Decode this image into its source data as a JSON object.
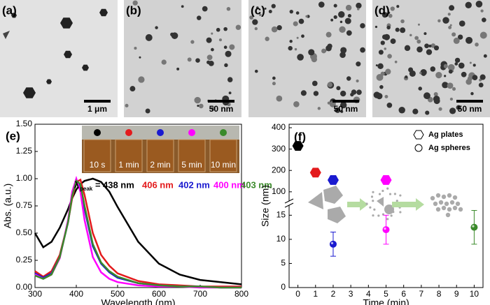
{
  "tem_images": [
    {
      "label": "(a)",
      "scale_bar": "1 μm"
    },
    {
      "label": "(b)",
      "scale_bar": "50 nm"
    },
    {
      "label": "(c)",
      "scale_bar": "50 nm"
    },
    {
      "label": "(d)",
      "scale_bar": "50 nm"
    }
  ],
  "chart_data": [
    {
      "type": "line",
      "panel_label": "(e)",
      "x_label": "Wavelength (nm)",
      "y_label": "Abs. (a.u.)",
      "peak_symbol": "λ",
      "peak_subscript": "peak",
      "peak_equals": "=",
      "xlim": [
        300,
        800
      ],
      "xticks": [
        300,
        400,
        500,
        600,
        700,
        800
      ],
      "ylim": [
        0,
        1.5
      ],
      "yticks": [
        {
          "value": 0,
          "label": "0.00"
        },
        {
          "value": 0.25,
          "label": "0.25"
        },
        {
          "value": 0.5,
          "label": "0.50"
        },
        {
          "value": 0.75,
          "label": "0.75"
        },
        {
          "value": 1,
          "label": "1.00"
        },
        {
          "value": 1.25,
          "label": "1.25"
        },
        {
          "value": 1.5,
          "label": "1.50"
        }
      ],
      "x": [
        300,
        320,
        340,
        360,
        380,
        390,
        400,
        410,
        420,
        440,
        460,
        480,
        500,
        550,
        600,
        650,
        700,
        750,
        800
      ],
      "series": [
        {
          "name": "10 s",
          "color": "#000000",
          "peak_label": "438 nm",
          "values": [
            0.5,
            0.37,
            0.42,
            0.55,
            0.72,
            0.82,
            0.9,
            0.95,
            0.98,
            1.0,
            0.97,
            0.88,
            0.74,
            0.42,
            0.22,
            0.12,
            0.07,
            0.05,
            0.03
          ]
        },
        {
          "name": "1 min",
          "color": "#e31a1c",
          "peak_label": "406 nm",
          "values": [
            0.15,
            0.1,
            0.15,
            0.3,
            0.6,
            0.82,
            0.97,
            0.99,
            0.85,
            0.5,
            0.3,
            0.2,
            0.13,
            0.06,
            0.03,
            0.02,
            0.01,
            0.01,
            0.01
          ]
        },
        {
          "name": "2 min",
          "color": "#1a1ad0",
          "peak_label": "402 nm",
          "values": [
            0.13,
            0.09,
            0.13,
            0.28,
            0.6,
            0.85,
            0.99,
            0.93,
            0.72,
            0.38,
            0.22,
            0.14,
            0.09,
            0.04,
            0.02,
            0.01,
            0.01,
            0,
            0
          ]
        },
        {
          "name": "5 min",
          "color": "#ff00ff",
          "peak_label": "400 nm",
          "values": [
            0.12,
            0.08,
            0.12,
            0.27,
            0.62,
            0.88,
            1.0,
            0.88,
            0.62,
            0.28,
            0.14,
            0.08,
            0.05,
            0.02,
            0.01,
            0.01,
            0,
            0,
            0
          ]
        },
        {
          "name": "10 min",
          "color": "#3a8a2a",
          "peak_label": "403 nm",
          "values": [
            0.11,
            0.08,
            0.12,
            0.28,
            0.6,
            0.84,
            0.98,
            0.95,
            0.75,
            0.4,
            0.23,
            0.15,
            0.1,
            0.04,
            0.02,
            0.01,
            0.01,
            0,
            0
          ]
        }
      ]
    },
    {
      "type": "scatter",
      "panel_label": "(f)",
      "x_label": "Time (min)",
      "y_label": "Size (nm)",
      "xlim": [
        -0.5,
        10.5
      ],
      "xticks": [
        0,
        1,
        2,
        3,
        4,
        5,
        6,
        7,
        8,
        9,
        10
      ],
      "ylim": [
        0,
        16.5
      ],
      "yticks": [
        0,
        5,
        10,
        15
      ],
      "ylim_upper": [
        70,
        400
      ],
      "yticks_upper": [
        100,
        200,
        300,
        400
      ],
      "series": [
        {
          "name": "Ag plates",
          "marker": "hexagon",
          "x": [
            0,
            1,
            2,
            5
          ],
          "values": [
            315,
            190,
            155,
            155
          ],
          "colors": [
            "#000000",
            "#e31a1c",
            "#1a1ad0",
            "#ff00ff"
          ],
          "axis": "upper"
        },
        {
          "name": "Ag spheres",
          "marker": "sphere",
          "x": [
            2,
            5,
            10
          ],
          "values": [
            9,
            12,
            12.5
          ],
          "errors": [
            2.5,
            3,
            3.5
          ],
          "colors": [
            "#1a1ad0",
            "#ff00ff",
            "#3a8a2a"
          ]
        }
      ]
    }
  ]
}
